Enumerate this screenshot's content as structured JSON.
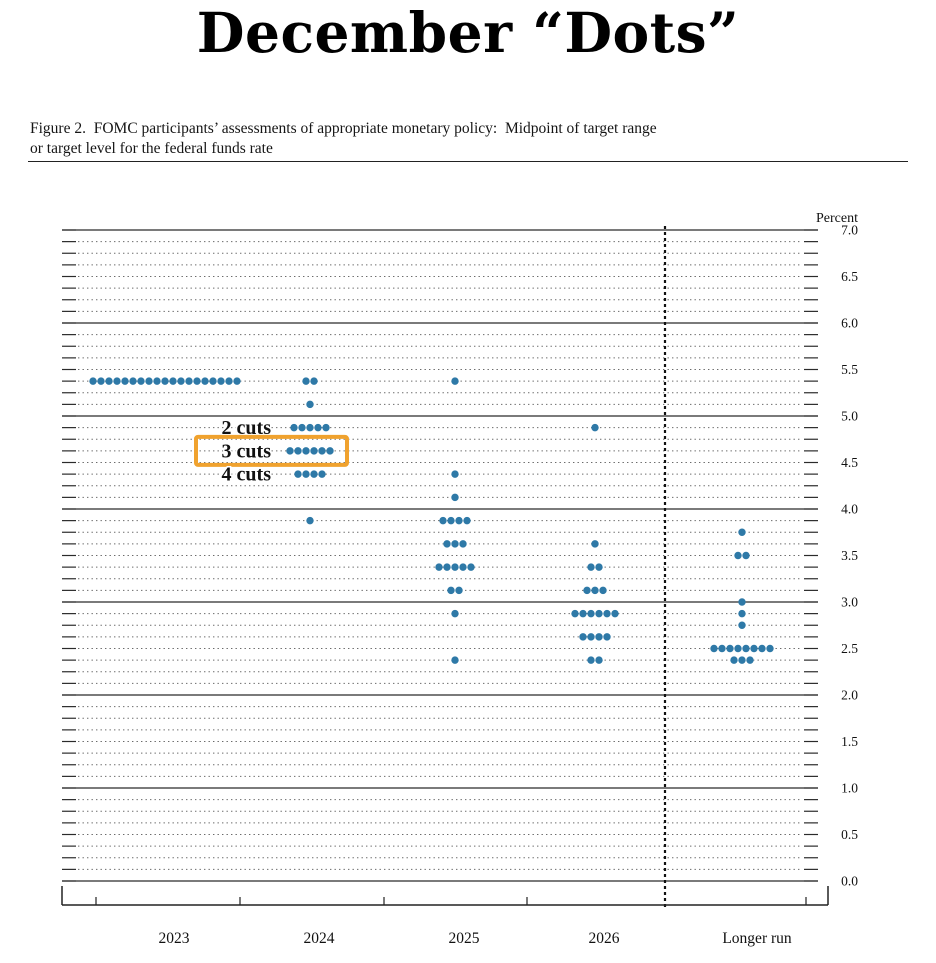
{
  "page": {
    "title": "December “Dots”"
  },
  "figure": {
    "caption_line1": "Figure 2.  FOMC participants’ assessments of appropriate monetary policy:  Midpoint of target range",
    "caption_line2": "or target level for the federal funds rate"
  },
  "chart_data": {
    "type": "scatter",
    "subtype": "fomc-dot-plot",
    "title": "December “Dots”",
    "ylabel": "Percent",
    "ylim": [
      0.0,
      7.0
    ],
    "yticks": [
      "7.0",
      "6.5",
      "6.0",
      "5.5",
      "5.0",
      "4.5",
      "4.0",
      "3.5",
      "3.0",
      "2.5",
      "2.0",
      "1.5",
      "1.0",
      "0.5",
      "0.0"
    ],
    "grid": {
      "dotted_every": 0.125,
      "solid_every": 1.0,
      "on": true
    },
    "legend_position": "none",
    "dot_color": "#2e79a7",
    "categories": [
      "2023",
      "2024",
      "2025",
      "2026",
      "Longer run"
    ],
    "series": [
      {
        "category": "2023",
        "dots": [
          {
            "rate": 5.375,
            "count": 19
          }
        ]
      },
      {
        "category": "2024",
        "dots": [
          {
            "rate": 5.375,
            "count": 2
          },
          {
            "rate": 5.125,
            "count": 1
          },
          {
            "rate": 4.875,
            "count": 5
          },
          {
            "rate": 4.625,
            "count": 6
          },
          {
            "rate": 4.375,
            "count": 4
          },
          {
            "rate": 3.875,
            "count": 1
          }
        ]
      },
      {
        "category": "2025",
        "dots": [
          {
            "rate": 5.375,
            "count": 1
          },
          {
            "rate": 4.375,
            "count": 1
          },
          {
            "rate": 4.125,
            "count": 1
          },
          {
            "rate": 3.875,
            "count": 4
          },
          {
            "rate": 3.625,
            "count": 3
          },
          {
            "rate": 3.375,
            "count": 5
          },
          {
            "rate": 3.125,
            "count": 2
          },
          {
            "rate": 2.875,
            "count": 1
          },
          {
            "rate": 2.375,
            "count": 1
          }
        ]
      },
      {
        "category": "2026",
        "dots": [
          {
            "rate": 4.875,
            "count": 1
          },
          {
            "rate": 3.625,
            "count": 1
          },
          {
            "rate": 3.375,
            "count": 2
          },
          {
            "rate": 3.125,
            "count": 3
          },
          {
            "rate": 2.875,
            "count": 6
          },
          {
            "rate": 2.625,
            "count": 4
          },
          {
            "rate": 2.375,
            "count": 2
          }
        ]
      },
      {
        "category": "Longer run",
        "dots": [
          {
            "rate": 3.75,
            "count": 1
          },
          {
            "rate": 3.5,
            "count": 2
          },
          {
            "rate": 3.0,
            "count": 1
          },
          {
            "rate": 2.875,
            "count": 1
          },
          {
            "rate": 2.75,
            "count": 1
          },
          {
            "rate": 2.5,
            "count": 8
          },
          {
            "rate": 2.375,
            "count": 3
          }
        ]
      }
    ],
    "annotations": [
      {
        "label": "2 cuts",
        "category": "2024",
        "rate": 4.875,
        "color": "#e9404d",
        "highlighted": false
      },
      {
        "label": "3 cuts",
        "category": "2024",
        "rate": 4.625,
        "color": "#e9404d",
        "highlighted": true,
        "box_color": "#f0a22e"
      },
      {
        "label": "4 cuts",
        "category": "2024",
        "rate": 4.375,
        "color": "#e9404d",
        "highlighted": false
      }
    ],
    "separator": {
      "after_category": "2026",
      "style": "vertical-dashed-line"
    }
  }
}
